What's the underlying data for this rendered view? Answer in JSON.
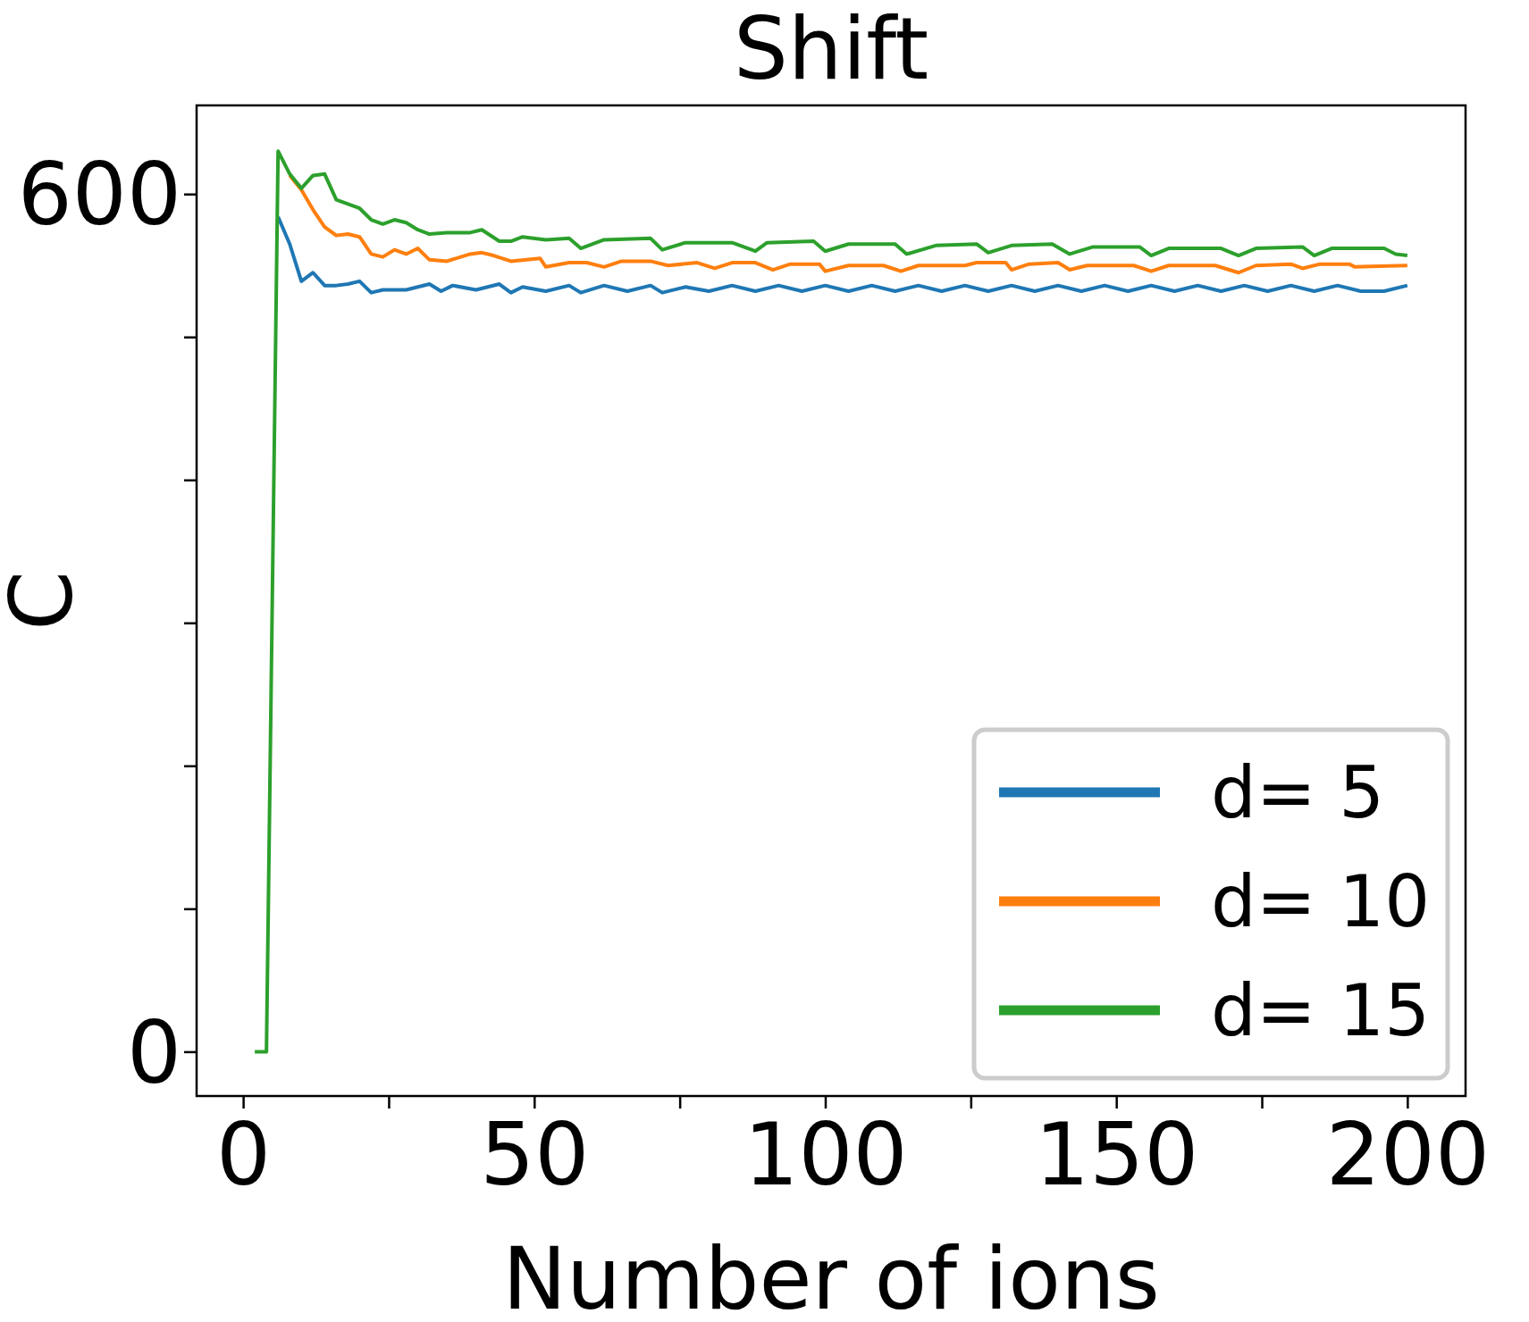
{
  "chart_data": {
    "type": "line",
    "title": "Shift",
    "xlabel": "Number of ions",
    "ylabel": "C",
    "xlim": [
      -8,
      210
    ],
    "ylim": [
      -31,
      662
    ],
    "xticks": [
      0,
      {
        "value": 25,
        "label": null
      },
      50,
      {
        "value": 75,
        "label": null
      },
      100,
      {
        "value": 125,
        "label": null
      },
      150,
      {
        "value": 175,
        "label": null
      },
      200
    ],
    "yticks": [
      0,
      {
        "value": 100,
        "label": null
      },
      {
        "value": 200,
        "label": null
      },
      {
        "value": 300,
        "label": null
      },
      {
        "value": 400,
        "label": null
      },
      {
        "value": 500,
        "label": null
      },
      600
    ],
    "grid": false,
    "legend": "bottom right",
    "marker": "none",
    "line_style": "solid",
    "series": [
      {
        "name": "d= 5",
        "color": "#1f77b4",
        "x": [
          6,
          8,
          10,
          12,
          14,
          16,
          18,
          20,
          22,
          24,
          28,
          32,
          34,
          36,
          40,
          44,
          46,
          48,
          52,
          56,
          58,
          62,
          66,
          70,
          72,
          76,
          80,
          84,
          88,
          92,
          96,
          100,
          104,
          108,
          112,
          116,
          120,
          124,
          128,
          132,
          136,
          140,
          144,
          148,
          152,
          156,
          160,
          164,
          168,
          172,
          176,
          180,
          184,
          188,
          192,
          196,
          200
        ],
        "values": [
          584,
          565,
          539,
          545,
          536,
          536,
          537,
          539,
          531,
          533,
          533,
          537,
          532,
          536,
          533,
          537,
          531,
          535,
          532,
          536,
          531,
          536,
          532,
          536,
          531,
          535,
          532,
          536,
          532,
          536,
          532,
          536,
          532,
          536,
          532,
          536,
          532,
          536,
          532,
          536,
          532,
          536,
          532,
          536,
          532,
          536,
          532,
          536,
          532,
          536,
          532,
          536,
          532,
          536,
          532,
          532,
          536
        ]
      },
      {
        "name": "d= 10",
        "color": "#ff7f0e",
        "x": [
          8,
          10,
          12,
          14,
          16,
          18,
          20,
          22,
          24,
          26,
          28,
          30,
          32,
          35,
          39,
          41,
          43,
          46,
          51,
          52,
          56,
          59,
          62,
          65,
          70,
          73,
          78,
          81,
          84,
          88,
          91,
          94,
          99,
          100,
          104,
          110,
          113,
          116,
          124,
          126,
          131,
          132,
          135,
          140,
          142,
          145,
          153,
          156,
          159,
          167,
          171,
          174,
          180,
          182,
          185,
          190,
          191,
          200
        ],
        "values": [
          613,
          603,
          589,
          577,
          571,
          572,
          570,
          558,
          556,
          561,
          558,
          562,
          554,
          553,
          558,
          559,
          557,
          553,
          555,
          549,
          552,
          552,
          549,
          553,
          553,
          550,
          552,
          548,
          552,
          552,
          547,
          551,
          551,
          546,
          550,
          550,
          546,
          550,
          550,
          552,
          552,
          547,
          551,
          552,
          547,
          550,
          550,
          546,
          550,
          550,
          545,
          550,
          551,
          548,
          551,
          551,
          549,
          550
        ]
      },
      {
        "name": "d= 15",
        "color": "#2ca02c",
        "x": [
          2,
          4,
          6,
          8,
          10,
          12,
          14,
          16,
          20,
          22,
          24,
          26,
          28,
          30,
          32,
          35,
          39,
          41,
          44,
          46,
          48,
          52,
          56,
          58,
          62,
          70,
          72,
          76,
          84,
          88,
          90,
          98,
          100,
          104,
          112,
          114,
          119,
          126,
          128,
          132,
          139,
          142,
          146,
          154,
          156,
          159,
          168,
          171,
          174,
          182,
          184,
          187,
          196,
          198,
          200
        ],
        "values": [
          0,
          0,
          630,
          614,
          604,
          613,
          614,
          596,
          590,
          582,
          579,
          582,
          580,
          575,
          572,
          573,
          573,
          575,
          567,
          567,
          570,
          568,
          569,
          562,
          568,
          569,
          561,
          566,
          566,
          560,
          566,
          567,
          560,
          565,
          565,
          558,
          564,
          565,
          559,
          564,
          565,
          558,
          563,
          563,
          557,
          562,
          562,
          557,
          562,
          563,
          557,
          562,
          562,
          558,
          557
        ]
      }
    ]
  }
}
